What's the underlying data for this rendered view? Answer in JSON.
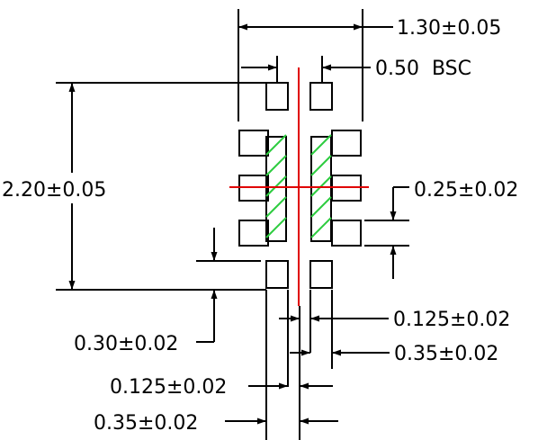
{
  "dimensions": {
    "overall_width": "1.30±0.05",
    "pitch": "0.50  BSC",
    "overall_height": "2.20±0.05",
    "pad_height": "0.25±0.02",
    "gap_to_bottom": "0.125±0.02",
    "pad_spacing_vertical": "0.30±0.02",
    "right_pad_width": "0.35±0.02",
    "gap_left": "0.125±0.02",
    "left_pad_width": "0.35±0.02"
  },
  "colors": {
    "lines": "#000000",
    "centerline": "#e00000",
    "hatching": "#2ecc40"
  }
}
